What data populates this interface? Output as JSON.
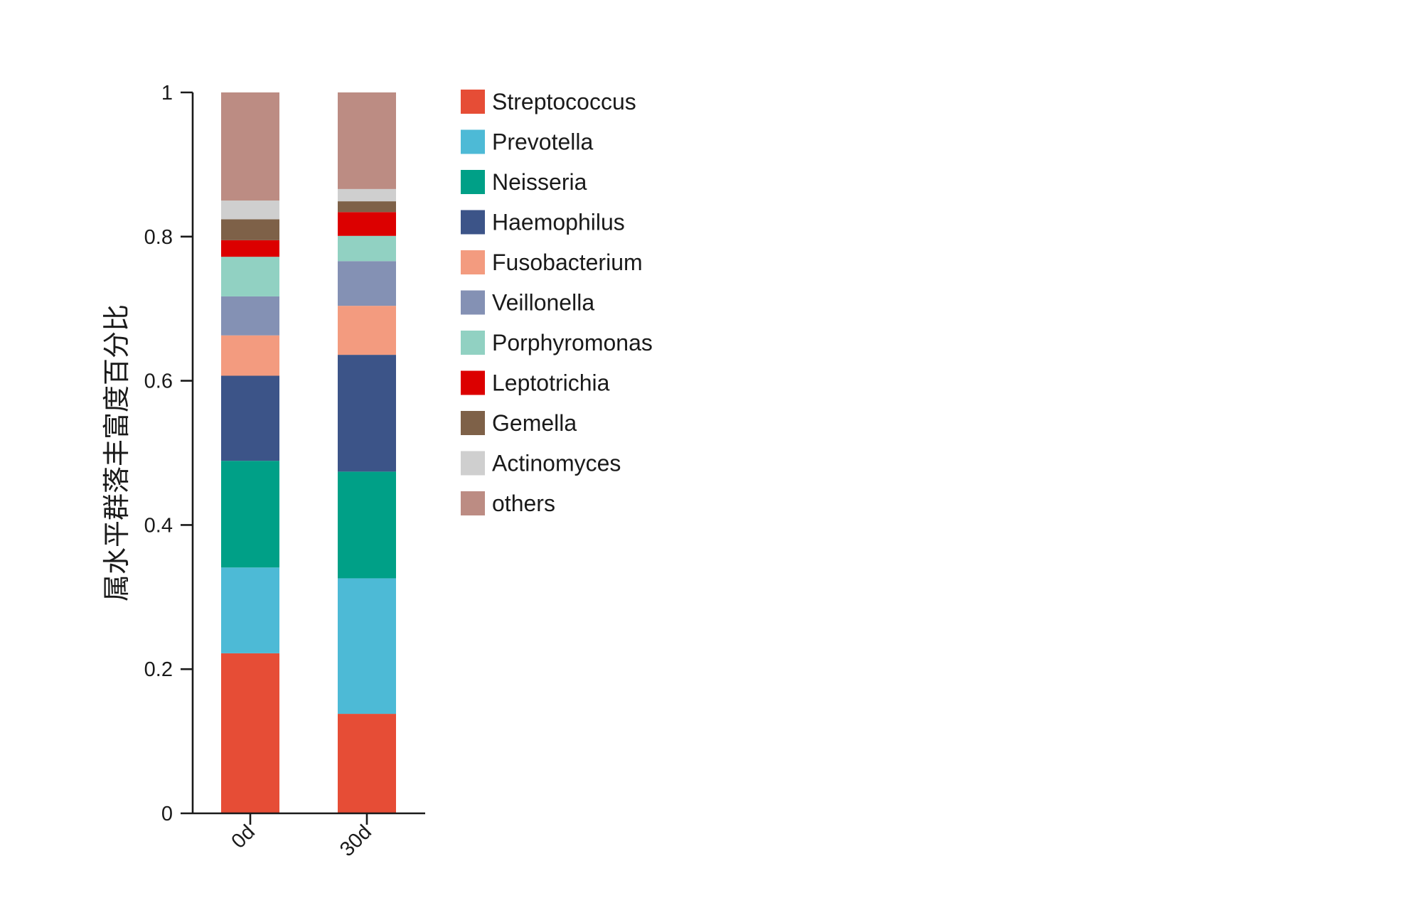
{
  "chart_data": {
    "type": "bar",
    "stacked": true,
    "ylabel": "属水平群落丰富度百分比",
    "xlabel": "",
    "title": "",
    "ylim": [
      0,
      1
    ],
    "yticks": [
      {
        "value": 0,
        "label": "0"
      },
      {
        "value": 0.2,
        "label": "0.2"
      },
      {
        "value": 0.4,
        "label": "0.4"
      },
      {
        "value": 0.6,
        "label": "0.6"
      },
      {
        "value": 0.8,
        "label": "0.8"
      },
      {
        "value": 1,
        "label": "1"
      }
    ],
    "categories": [
      "0d",
      "30d"
    ],
    "legend_position": "right",
    "series": [
      {
        "name": "Streptococcus",
        "color": "#E64D36",
        "values": [
          0.222,
          0.138
        ]
      },
      {
        "name": "Prevotella",
        "color": "#4DBAD6",
        "values": [
          0.119,
          0.188
        ]
      },
      {
        "name": "Neisseria",
        "color": "#00A087",
        "values": [
          0.148,
          0.148
        ]
      },
      {
        "name": "Haemophilus",
        "color": "#3C5488",
        "values": [
          0.118,
          0.162
        ]
      },
      {
        "name": "Fusobacterium",
        "color": "#F39B7F",
        "values": [
          0.056,
          0.068
        ]
      },
      {
        "name": "Veillonella",
        "color": "#8491B4",
        "values": [
          0.054,
          0.062
        ]
      },
      {
        "name": "Porphyromonas",
        "color": "#91D1C2",
        "values": [
          0.055,
          0.035
        ]
      },
      {
        "name": "Leptotrichia",
        "color": "#DC0000",
        "values": [
          0.023,
          0.033
        ]
      },
      {
        "name": "Gemella",
        "color": "#7E6148",
        "values": [
          0.029,
          0.015
        ]
      },
      {
        "name": "Actinomyces",
        "color": "#CFCFCF",
        "values": [
          0.026,
          0.017
        ]
      },
      {
        "name": "others",
        "color": "#BC8C83",
        "values": [
          0.15,
          0.134
        ]
      }
    ]
  }
}
